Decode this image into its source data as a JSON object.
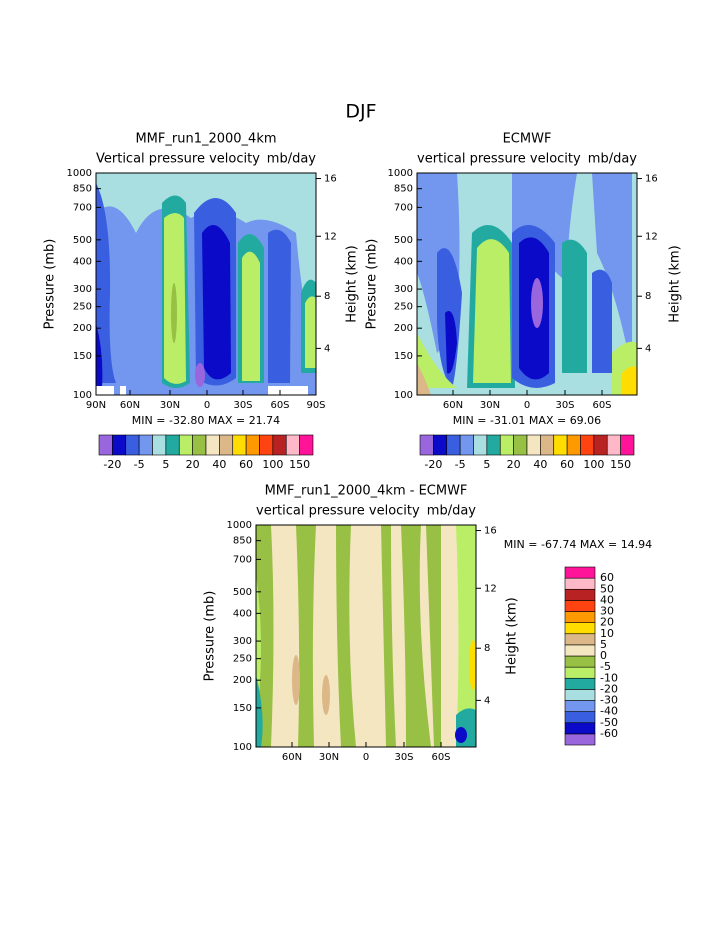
{
  "title": "DJF",
  "palette": [
    "#9966dd",
    "#0a0ac8",
    "#3a5ee0",
    "#7396ee",
    "#a9dfe0",
    "#22aaa0",
    "#b9ee66",
    "#98c044",
    "#f5e6c2",
    "#dcb888",
    "#ffdd00",
    "#ff9900",
    "#ff4411",
    "#b82222",
    "#ffb8c8",
    "#ff1499"
  ],
  "panels": [
    {
      "title": "MMF_run1_2000_4km",
      "subtitle": "Vertical pressure velocity",
      "units": "mb/day",
      "ylabel": "Pressure (mb)",
      "y2label": "Height (km)",
      "ylim": [
        100,
        1000
      ],
      "yticks": [
        100,
        150,
        200,
        250,
        300,
        400,
        500,
        700,
        850,
        1000
      ],
      "y2ticks": [
        4,
        8,
        12,
        16
      ],
      "xticks": [
        "90N",
        "60N",
        "30N",
        "0",
        "30S",
        "60S",
        "90S"
      ],
      "stats": "MIN = -32.80   MAX =  21.74",
      "colorbar_labels": [
        -20,
        -5,
        5,
        20,
        40,
        60,
        100,
        150
      ]
    },
    {
      "title": "ECMWF",
      "subtitle": "vertical pressure velocity",
      "units": "mb/day",
      "ylabel": "Pressure (mb)",
      "y2label": "Height (km)",
      "ylim": [
        100,
        1000
      ],
      "yticks": [
        100,
        150,
        200,
        250,
        300,
        400,
        500,
        700,
        850,
        1000
      ],
      "y2ticks": [
        4,
        8,
        12,
        16
      ],
      "xticks": [
        "60N",
        "30N",
        "0",
        "30S",
        "60S"
      ],
      "stats": "MIN = -31.01   MAX =  69.06",
      "colorbar_labels": [
        -20,
        -5,
        5,
        20,
        40,
        60,
        100,
        150
      ]
    },
    {
      "title": "MMF_run1_2000_4km - ECMWF",
      "subtitle": "vertical pressure velocity",
      "units": "mb/day",
      "ylabel": "Pressure (mb)",
      "y2label": "Height (km)",
      "ylim": [
        100,
        1000
      ],
      "yticks": [
        100,
        150,
        200,
        250,
        300,
        400,
        500,
        700,
        850,
        1000
      ],
      "y2ticks": [
        4,
        8,
        12,
        16
      ],
      "xticks": [
        "60N",
        "30N",
        "0",
        "30S",
        "60S"
      ],
      "stats": "MIN = -67.74   MAX =  14.94",
      "colorbar_labels": [
        60,
        50,
        40,
        30,
        20,
        10,
        5,
        0,
        -5,
        -10,
        -20,
        -30,
        -40,
        -50,
        -60
      ]
    }
  ]
}
